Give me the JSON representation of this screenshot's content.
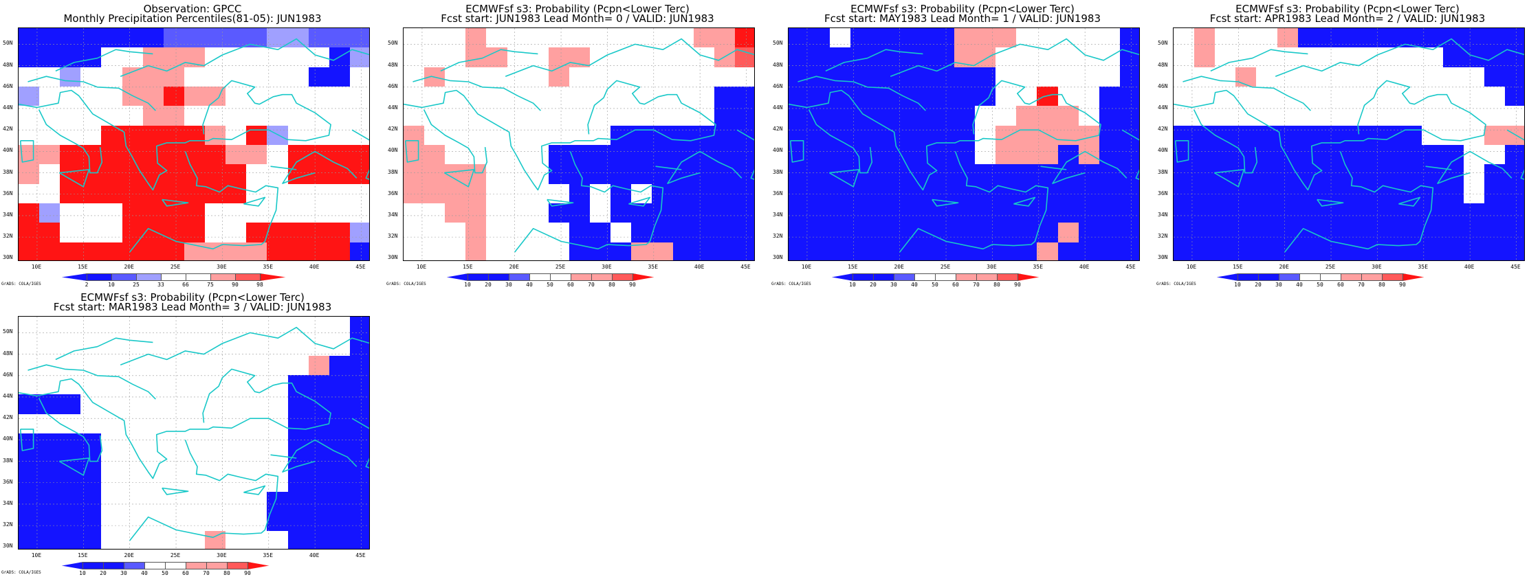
{
  "colors": {
    "blue_dark": "#1414ff",
    "blue_mid": "#5a5aff",
    "blue_light": "#a0a0ff",
    "white": "#ffffff",
    "red_light": "#ffa0a0",
    "red_mid": "#ff5a5a",
    "red_dark": "#ff1414",
    "coast": "#19c8c8"
  },
  "panels": [
    {
      "title_line1": "Observation: GPCC",
      "title_line2": "Monthly Precipitation Percentiles(81-05): JUN1983",
      "colorbar_ticks": [
        "2",
        "10",
        "25",
        "33",
        "66",
        "75",
        "90",
        "98"
      ],
      "credit": "GrADS: COLA/IGES",
      "grid": [
        "aaaaaaabbbbbccbbb",
        "aaaawwdddwwwwwwac",
        "wwcwwdddwwwwwwaaw",
        "cwwwwddfddwwwwwww",
        "wwwwwwddwwwwwwwww",
        "wwwwfffffdwfcwwww",
        "ddffffffffddwffff",
        "dwfffffffffwwffff",
        "wwfffffffffwwwwww",
        "fcwwwffffwwwwwwww",
        "ffwwwffffwwfffffc",
        "ffffffffddddffffa"
      ]
    },
    {
      "title_line1": "ECMWFsf s3: Probability (Pcpn<Lower Terc)",
      "title_line2": "Fcst start: JUN1983  Lead Month= 0 / VALID: JUN1983",
      "colorbar_ticks": [
        "10",
        "20",
        "30",
        "40",
        "50",
        "60",
        "70",
        "80",
        "90"
      ],
      "credit": "GrADS: COLA/IGES",
      "grid": [
        "wwwdwwwwwwwwwwddf",
        "wwwddwwddwwwwwwde",
        "wdwwwwwdwwwwwwwww",
        "wwwwwwwwwwwwwwwaa",
        "wwwwwwwwwwwwwwwaa",
        "dwwwwwwwwwaaaaaaa",
        "ddwwwwwaaaaaaaaaa",
        "ddddwwwaaaaaaaaaa",
        "ddddwwwwawawaaaaa",
        "wwddwwwaawaaaaaaa",
        "wwwdwwwwaawaaaaaa",
        "wwwdwwwwaaaddaaaa"
      ]
    },
    {
      "title_line1": "ECMWFsf s3: Probability (Pcpn<Lower Terc)",
      "title_line2": "Fcst start: MAY1983  Lead Month= 1 / VALID: JUN1983",
      "colorbar_ticks": [
        "10",
        "20",
        "30",
        "40",
        "50",
        "60",
        "70",
        "80",
        "90"
      ],
      "credit": "GrADS: COLA/IGES",
      "grid": [
        "aawaaaaadddwwwwwa",
        "aaaaaaaaddwwwwwwa",
        "aaaaaaaaaawwwwwwa",
        "aaaaaaaaaawwfwwaa",
        "aaaaaaaaawwdddwaa",
        "aaaaaaaaawdddddaa",
        "aaaaaaaaawdddadaa",
        "aaaaaaaaaaaaaaaaa",
        "aaaaaaaaaaaaaaaaa",
        "aaaaaaaaaaaaaaaaa",
        "aaaaaaaaaaaaadaaa",
        "aaaaaaaaaaaadaaaa"
      ]
    },
    {
      "title_line1": "ECMWFsf s3: Probability (Pcpn<Lower Terc)",
      "title_line2": "Fcst start: APR1983  Lead Month= 2 / VALID: JUN1983",
      "colorbar_ticks": [
        "10",
        "20",
        "30",
        "40",
        "50",
        "60",
        "70",
        "80",
        "90"
      ],
      "credit": "GrADS: COLA/IGES",
      "grid": [
        "wdwwwdaaaaaaaaaaa",
        "wdwwwwwwwwwwwaaaa",
        "wwwdwwwwwwwwwwwaa",
        "wwwwwwwwwwwwwwwwa",
        "wwwwwwwwwwwwwwwww",
        "aaaaaaaaaaaawwwdd",
        "aaaaaaaaaaaaaawwa",
        "aaaaaaaaaaaaaawaa",
        "aaaaaaaaaaaaaawaa",
        "aaaaaaaaaaaaaaaaa",
        "aaaaaaaaaaaaaaaaa",
        "aaaaaaaaaaaaaaaaa"
      ]
    },
    {
      "title_line1": "ECMWFsf s3: Probability (Pcpn<Lower Terc)",
      "title_line2": "Fcst start: MAR1983  Lead Month= 3 / VALID: JUN1983",
      "colorbar_ticks": [
        "10",
        "20",
        "30",
        "40",
        "50",
        "60",
        "70",
        "80",
        "90"
      ],
      "credit": "GrADS: COLA/IGES",
      "grid": [
        "wwwwwwwwwwwwwwwwa",
        "wwwwwwwwwwwwwwwwa",
        "wwwwwwwwwwwwwwdaa",
        "wwwwwwwwwwwwwaaaa",
        "aaawwwwwwwwwwaaaa",
        "wwwwwwwwwwwwwaaaa",
        "aaaawwwwwwwwwaaaa",
        "aaaawwwwwwwwwaaaa",
        "aaaawwwwwwwwwaaaa",
        "aaaawwwwwwwwaaaaa",
        "aaaawwwwwwwwaaaaa",
        "aaaawwwwwdwwwaaaa"
      ]
    }
  ],
  "lat_labels": [
    "50N",
    "48N",
    "46N",
    "44N",
    "42N",
    "40N",
    "38N",
    "36N",
    "34N",
    "32N",
    "30N"
  ],
  "lon_labels": [
    "10E",
    "15E",
    "20E",
    "25E",
    "30E",
    "35E",
    "40E",
    "45E"
  ],
  "legend_obs": {
    "labels": [
      "2",
      "10",
      "25",
      "33",
      "66",
      "75",
      "90",
      "98"
    ]
  },
  "legend_prob": {
    "labels": [
      "10",
      "20",
      "30",
      "40",
      "50",
      "60",
      "70",
      "80",
      "90"
    ]
  }
}
